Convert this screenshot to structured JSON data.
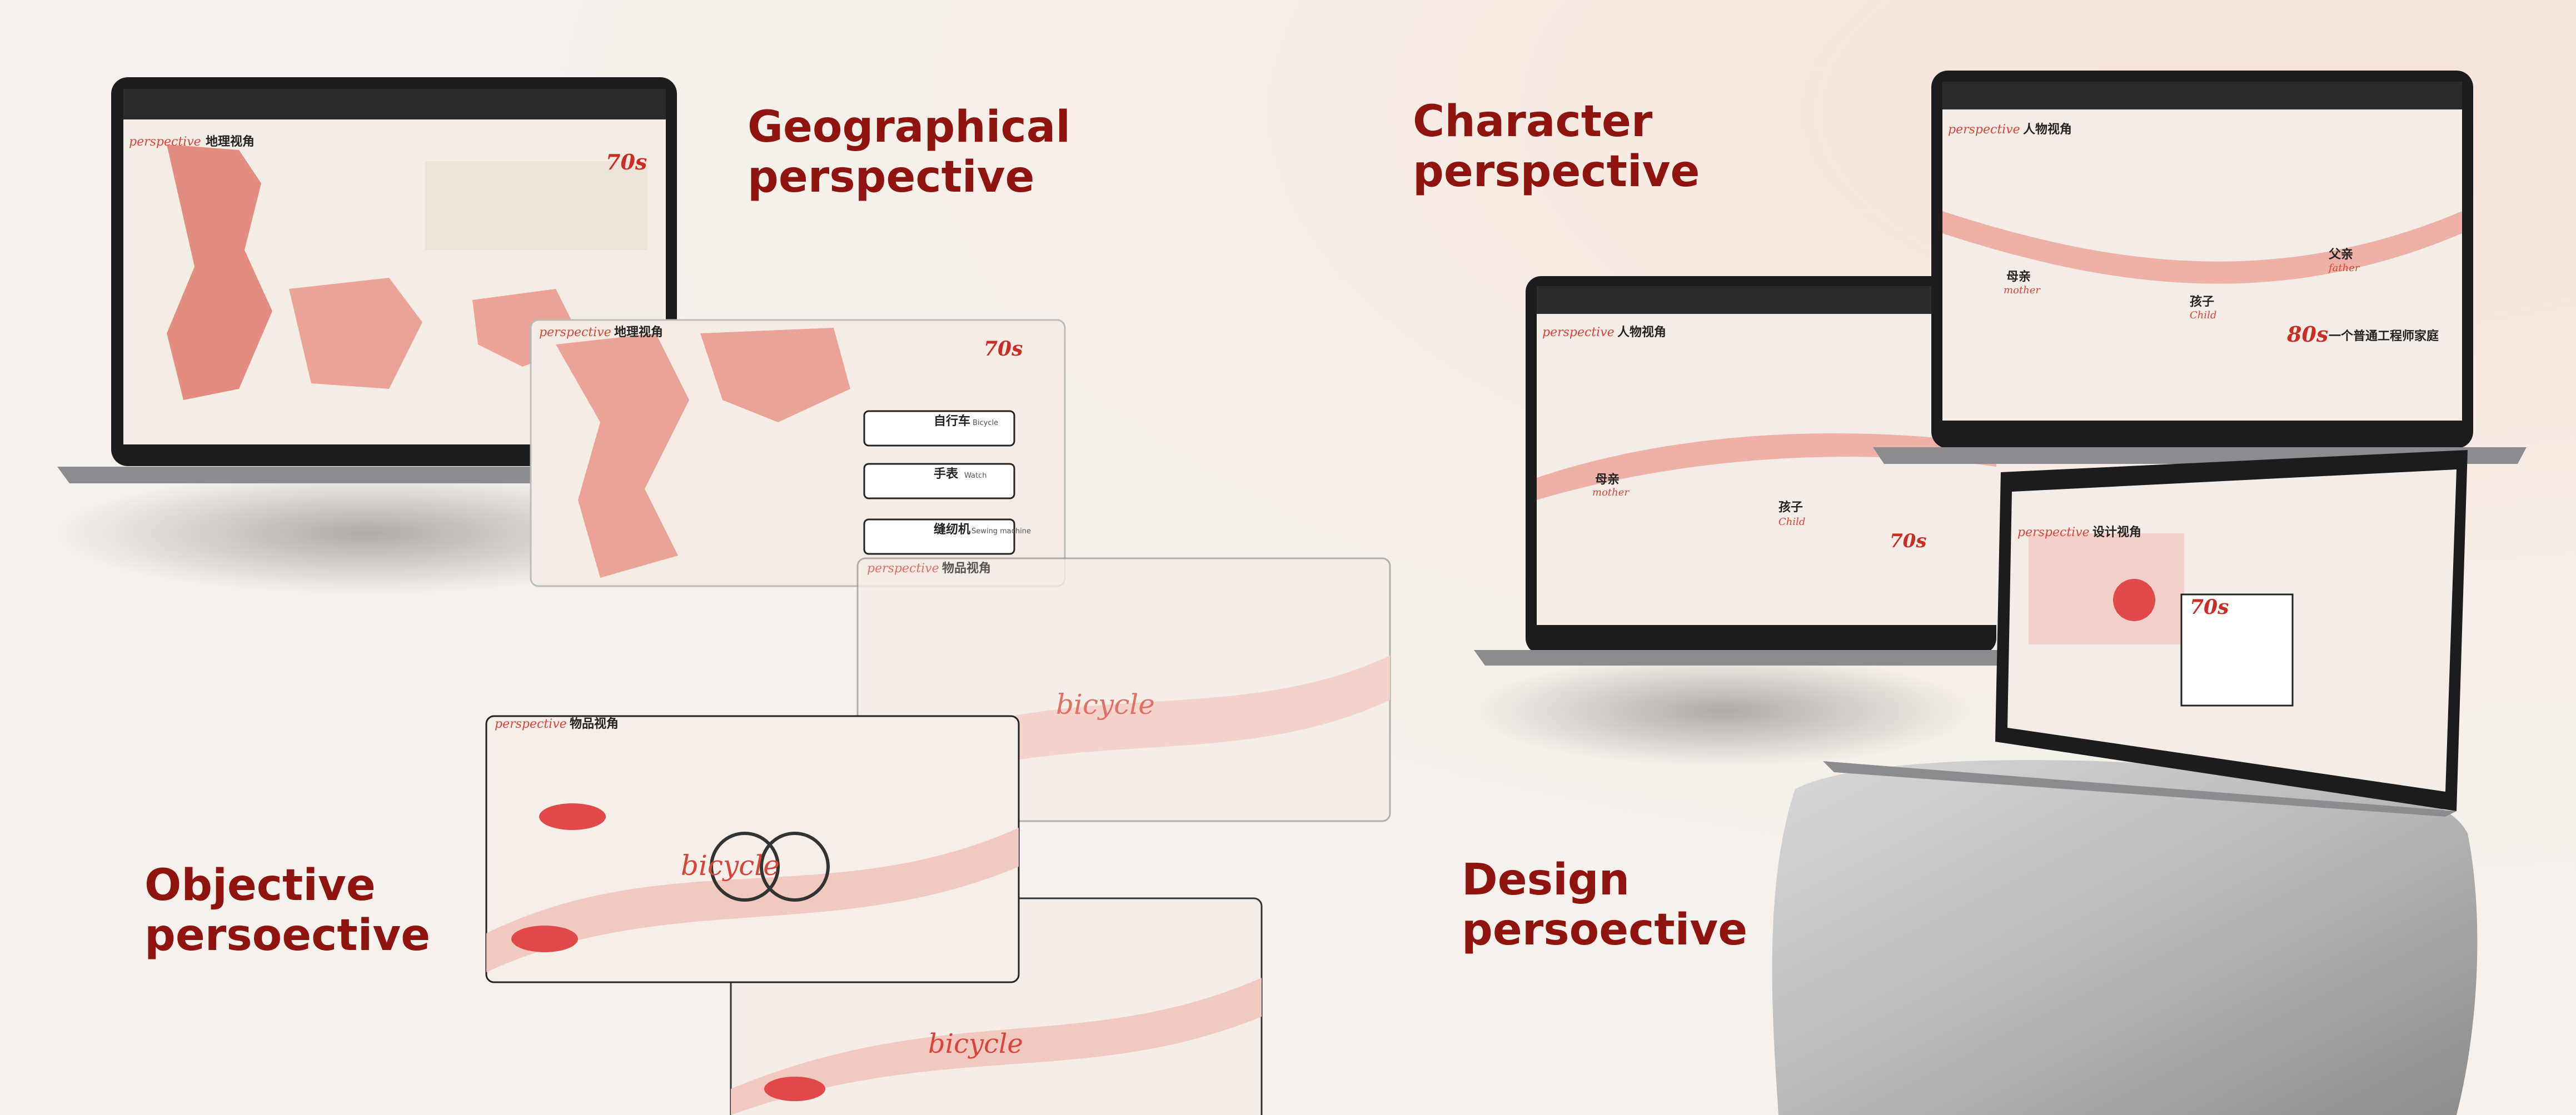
{
  "sections": [
    {
      "title": [
        "Geographical",
        "perspective"
      ]
    },
    {
      "title": [
        "Character",
        "perspective"
      ]
    },
    {
      "title": [
        "Objective",
        "persoective"
      ]
    },
    {
      "title": [
        "Design",
        "persoective"
      ]
    }
  ],
  "screens": {
    "brand": "perspective",
    "geo": {
      "title": "地理视角",
      "decade": "70s",
      "items": [
        {
          "zh": "自行车",
          "en": "Bicycle"
        },
        {
          "zh": "手表",
          "en": "Watch"
        },
        {
          "zh": "缝纫机",
          "en": "Sewing machine"
        }
      ]
    },
    "character": {
      "title": "人物视角",
      "people": [
        {
          "zh": "母亲",
          "en": "mother"
        },
        {
          "zh": "孩子",
          "en": "Child"
        },
        {
          "zh": "父亲",
          "en": "father"
        }
      ],
      "decade": "80s",
      "caption": "一个普通工程师家庭"
    },
    "object": {
      "title": "物品视角",
      "word": "bicycle"
    },
    "design": {
      "title": "设计视角",
      "decade": "70s"
    }
  }
}
